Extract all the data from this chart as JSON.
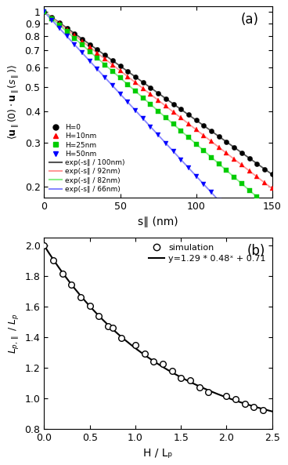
{
  "panel_a": {
    "title": "(a)",
    "xlabel": "s∥ (nm)",
    "ylabel": "⟨μ∥(0)·μ∥(s∥)⟩",
    "xlim": [
      0,
      150
    ],
    "ylim": [
      0.18,
      1.05
    ],
    "series": [
      {
        "label": "H=0",
        "color": "#000000",
        "marker": "o",
        "lp": 100,
        "mfc": "#000000"
      },
      {
        "label": "H=10nm",
        "color": "#ff0000",
        "marker": "^",
        "lp": 92,
        "mfc": "#ff0000"
      },
      {
        "label": "H=25nm",
        "color": "#00cc00",
        "marker": "s",
        "lp": 82,
        "mfc": "#00cc00"
      },
      {
        "label": "H=50nm",
        "color": "#0000ff",
        "marker": "v",
        "lp": 66,
        "mfc": "#0000ff"
      }
    ],
    "fit_labels": [
      "exp(-s∥ / 100nm)",
      "exp(-s∥ / 92nm)",
      "exp(-s∥ / 82nm)",
      "exp(-s∥ / 66nm)"
    ],
    "fit_colors": [
      "#555555",
      "#ff9999",
      "#88ee88",
      "#8888ff"
    ],
    "n_points": 31
  },
  "panel_b": {
    "title": "(b)",
    "xlabel": "H / Lₚ",
    "ylabel": "Lₚ,∥ / Lₚ",
    "xlim": [
      0,
      2.5
    ],
    "ylim": [
      0.8,
      2.05
    ],
    "fit_eq": "y=1.29 * 0.48ˣ + 0.71",
    "A": 1.29,
    "B": 0.48,
    "C": 0.71,
    "sim_x": [
      0.0,
      0.1,
      0.2,
      0.3,
      0.4,
      0.5,
      0.6,
      0.7,
      0.75,
      0.85,
      1.0,
      1.1,
      1.2,
      1.3,
      1.4,
      1.5,
      1.6,
      1.7,
      1.8,
      2.0,
      2.1,
      2.2,
      2.3,
      2.4
    ],
    "sim_y_offset": [
      0.0,
      -0.005,
      -0.005,
      0.0,
      -0.01,
      0.0,
      0.0,
      -0.01,
      0.01,
      -0.005,
      0.02,
      0.01,
      0.0,
      0.02,
      0.01,
      -0.005,
      0.01,
      -0.005,
      -0.01,
      0.01,
      0.01,
      0.0,
      -0.005,
      -0.005
    ]
  }
}
